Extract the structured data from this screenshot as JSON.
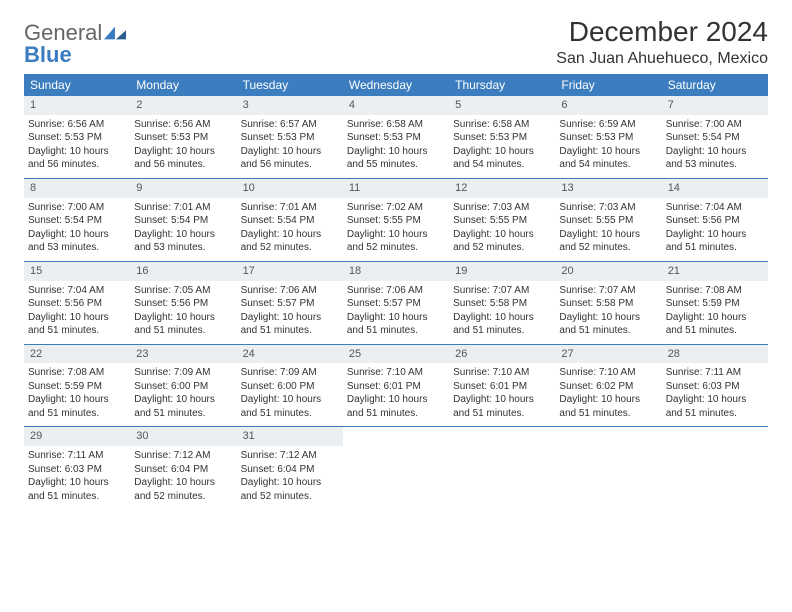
{
  "logo": {
    "text1": "General",
    "text2": "Blue"
  },
  "colors": {
    "header_bg": "#3b7dbf",
    "daynum_bg": "#eceff1",
    "rule": "#3b7dbf"
  },
  "title": "December 2024",
  "location": "San Juan Ahuehueco, Mexico",
  "weekdays": [
    "Sunday",
    "Monday",
    "Tuesday",
    "Wednesday",
    "Thursday",
    "Friday",
    "Saturday"
  ],
  "labels": {
    "sunrise": "Sunrise:",
    "sunset": "Sunset:",
    "daylight": "Daylight:"
  },
  "weeks": [
    [
      {
        "n": "1",
        "sr": "6:56 AM",
        "ss": "5:53 PM",
        "dl": "10 hours and 56 minutes."
      },
      {
        "n": "2",
        "sr": "6:56 AM",
        "ss": "5:53 PM",
        "dl": "10 hours and 56 minutes."
      },
      {
        "n": "3",
        "sr": "6:57 AM",
        "ss": "5:53 PM",
        "dl": "10 hours and 56 minutes."
      },
      {
        "n": "4",
        "sr": "6:58 AM",
        "ss": "5:53 PM",
        "dl": "10 hours and 55 minutes."
      },
      {
        "n": "5",
        "sr": "6:58 AM",
        "ss": "5:53 PM",
        "dl": "10 hours and 54 minutes."
      },
      {
        "n": "6",
        "sr": "6:59 AM",
        "ss": "5:53 PM",
        "dl": "10 hours and 54 minutes."
      },
      {
        "n": "7",
        "sr": "7:00 AM",
        "ss": "5:54 PM",
        "dl": "10 hours and 53 minutes."
      }
    ],
    [
      {
        "n": "8",
        "sr": "7:00 AM",
        "ss": "5:54 PM",
        "dl": "10 hours and 53 minutes."
      },
      {
        "n": "9",
        "sr": "7:01 AM",
        "ss": "5:54 PM",
        "dl": "10 hours and 53 minutes."
      },
      {
        "n": "10",
        "sr": "7:01 AM",
        "ss": "5:54 PM",
        "dl": "10 hours and 52 minutes."
      },
      {
        "n": "11",
        "sr": "7:02 AM",
        "ss": "5:55 PM",
        "dl": "10 hours and 52 minutes."
      },
      {
        "n": "12",
        "sr": "7:03 AM",
        "ss": "5:55 PM",
        "dl": "10 hours and 52 minutes."
      },
      {
        "n": "13",
        "sr": "7:03 AM",
        "ss": "5:55 PM",
        "dl": "10 hours and 52 minutes."
      },
      {
        "n": "14",
        "sr": "7:04 AM",
        "ss": "5:56 PM",
        "dl": "10 hours and 51 minutes."
      }
    ],
    [
      {
        "n": "15",
        "sr": "7:04 AM",
        "ss": "5:56 PM",
        "dl": "10 hours and 51 minutes."
      },
      {
        "n": "16",
        "sr": "7:05 AM",
        "ss": "5:56 PM",
        "dl": "10 hours and 51 minutes."
      },
      {
        "n": "17",
        "sr": "7:06 AM",
        "ss": "5:57 PM",
        "dl": "10 hours and 51 minutes."
      },
      {
        "n": "18",
        "sr": "7:06 AM",
        "ss": "5:57 PM",
        "dl": "10 hours and 51 minutes."
      },
      {
        "n": "19",
        "sr": "7:07 AM",
        "ss": "5:58 PM",
        "dl": "10 hours and 51 minutes."
      },
      {
        "n": "20",
        "sr": "7:07 AM",
        "ss": "5:58 PM",
        "dl": "10 hours and 51 minutes."
      },
      {
        "n": "21",
        "sr": "7:08 AM",
        "ss": "5:59 PM",
        "dl": "10 hours and 51 minutes."
      }
    ],
    [
      {
        "n": "22",
        "sr": "7:08 AM",
        "ss": "5:59 PM",
        "dl": "10 hours and 51 minutes."
      },
      {
        "n": "23",
        "sr": "7:09 AM",
        "ss": "6:00 PM",
        "dl": "10 hours and 51 minutes."
      },
      {
        "n": "24",
        "sr": "7:09 AM",
        "ss": "6:00 PM",
        "dl": "10 hours and 51 minutes."
      },
      {
        "n": "25",
        "sr": "7:10 AM",
        "ss": "6:01 PM",
        "dl": "10 hours and 51 minutes."
      },
      {
        "n": "26",
        "sr": "7:10 AM",
        "ss": "6:01 PM",
        "dl": "10 hours and 51 minutes."
      },
      {
        "n": "27",
        "sr": "7:10 AM",
        "ss": "6:02 PM",
        "dl": "10 hours and 51 minutes."
      },
      {
        "n": "28",
        "sr": "7:11 AM",
        "ss": "6:03 PM",
        "dl": "10 hours and 51 minutes."
      }
    ],
    [
      {
        "n": "29",
        "sr": "7:11 AM",
        "ss": "6:03 PM",
        "dl": "10 hours and 51 minutes."
      },
      {
        "n": "30",
        "sr": "7:12 AM",
        "ss": "6:04 PM",
        "dl": "10 hours and 52 minutes."
      },
      {
        "n": "31",
        "sr": "7:12 AM",
        "ss": "6:04 PM",
        "dl": "10 hours and 52 minutes."
      },
      null,
      null,
      null,
      null
    ]
  ]
}
